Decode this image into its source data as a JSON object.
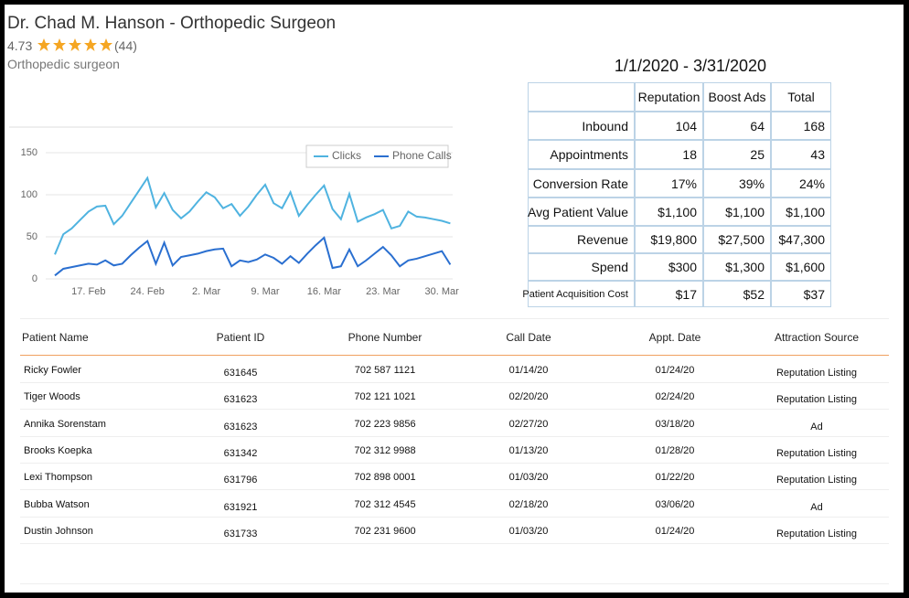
{
  "header": {
    "title": "Dr. Chad M. Hanson - Orthopedic Surgeon",
    "rating": "4.73",
    "reviews": "(44)",
    "subtitle": "Orthopedic surgeon"
  },
  "chart_data": {
    "type": "line",
    "categories": [
      "13. Feb",
      "14. Feb",
      "15. Feb",
      "16. Feb",
      "17. Feb",
      "18. Feb",
      "19. Feb",
      "20. Feb",
      "21. Feb",
      "22. Feb",
      "23. Feb",
      "24. Feb",
      "25. Feb",
      "26. Feb",
      "27. Feb",
      "28. Feb",
      "29. Feb",
      "1. Mar",
      "2. Mar",
      "3. Mar",
      "4. Mar",
      "5. Mar",
      "6. Mar",
      "7. Mar",
      "8. Mar",
      "9. Mar",
      "10. Mar",
      "11. Mar",
      "12. Mar",
      "13. Mar",
      "14. Mar",
      "15. Mar",
      "16. Mar",
      "17. Mar",
      "18. Mar",
      "19. Mar",
      "20. Mar",
      "21. Mar",
      "22. Mar",
      "23. Mar",
      "24. Mar",
      "25. Mar",
      "26. Mar",
      "27. Mar",
      "28. Mar",
      "29. Mar",
      "30. Mar",
      "31. Mar"
    ],
    "series": [
      {
        "name": "Clicks",
        "color": "#4fb3e0",
        "values": [
          29,
          53,
          60,
          70,
          80,
          86,
          87,
          65,
          75,
          90,
          105,
          120,
          85,
          102,
          82,
          72,
          80,
          92,
          103,
          97,
          84,
          89,
          75,
          86,
          100,
          112,
          90,
          84,
          103,
          75,
          88,
          100,
          111,
          83,
          71,
          101,
          68,
          73,
          77,
          82,
          60,
          63,
          80,
          74,
          73,
          71,
          69,
          66
        ]
      },
      {
        "name": "Phone Calls",
        "color": "#2a6fd0",
        "values": [
          4,
          12,
          14,
          16,
          18,
          17,
          22,
          16,
          18,
          28,
          37,
          45,
          18,
          43,
          16,
          26,
          28,
          30,
          33,
          35,
          36,
          15,
          22,
          20,
          23,
          29,
          25,
          18,
          27,
          19,
          30,
          40,
          49,
          13,
          15,
          35,
          15,
          22,
          30,
          38,
          28,
          15,
          22,
          24,
          27,
          30,
          33,
          17
        ]
      }
    ],
    "ylim": [
      0,
      150
    ],
    "yticks": [
      0,
      50,
      100,
      150
    ],
    "xticks": [
      "17. Feb",
      "24. Feb",
      "2. Mar",
      "9. Mar",
      "16. Mar",
      "23. Mar",
      "30. Mar"
    ],
    "grid": true,
    "legend": "top-right"
  },
  "summary": {
    "title": "1/1/2020 - 3/31/2020",
    "columns": [
      "Reputation",
      "Boost Ads",
      "Total"
    ],
    "rows": [
      {
        "label": "Inbound",
        "cells": [
          "104",
          "64",
          "168"
        ]
      },
      {
        "label": "Appointments",
        "cells": [
          "18",
          "25",
          "43"
        ]
      },
      {
        "label": "Conversion Rate",
        "cells": [
          "17%",
          "39%",
          "24%"
        ]
      },
      {
        "label": "Avg Patient Value",
        "cells": [
          "$1,100",
          "$1,100",
          "$1,100"
        ]
      },
      {
        "label": "Revenue",
        "cells": [
          "$19,800",
          "$27,500",
          "$47,300"
        ]
      },
      {
        "label": "Spend",
        "cells": [
          "$300",
          "$1,300",
          "$1,600"
        ]
      },
      {
        "label": "Patient Acquisition Cost",
        "cells": [
          "$17",
          "$52",
          "$37"
        ]
      }
    ]
  },
  "patients": {
    "columns": [
      "Patient Name",
      "Patient ID",
      "Phone Number",
      "Call Date",
      "Appt. Date",
      "Attraction Source"
    ],
    "rows": [
      [
        "Ricky Fowler",
        "631645",
        "702 587 1121",
        "01/14/20",
        "01/24/20",
        "Reputation Listing"
      ],
      [
        "Tiger Woods",
        "631623",
        "702 121 1021",
        "02/20/20",
        "02/24/20",
        "Reputation Listing"
      ],
      [
        "Annika Sorenstam",
        "631623",
        "702 223 9856",
        "02/27/20",
        "03/18/20",
        "Ad"
      ],
      [
        "Brooks Koepka",
        "631342",
        "702 312 9988",
        "01/13/20",
        "01/28/20",
        "Reputation Listing"
      ],
      [
        "Lexi Thompson",
        "631796",
        "702 898 0001",
        "01/03/20",
        "01/22/20",
        "Reputation Listing"
      ],
      [
        "Bubba Watson",
        "631921",
        "702 312 4545",
        "02/18/20",
        "03/06/20",
        "Ad"
      ],
      [
        "Dustin Johnson",
        "631733",
        "702 231 9600",
        "01/03/20",
        "01/24/20",
        "Reputation Listing"
      ]
    ]
  }
}
